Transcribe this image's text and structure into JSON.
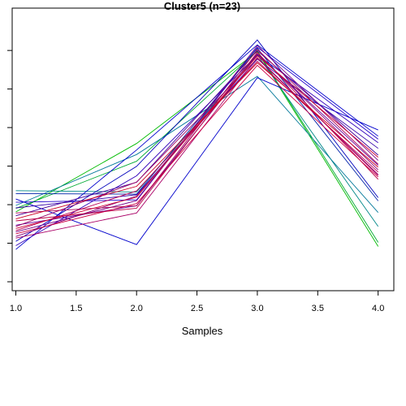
{
  "chart_data": {
    "type": "line",
    "title": "Cluster5 (n=23)",
    "xlabel": "Samples",
    "ylabel": "",
    "x": [
      1,
      2,
      3,
      4
    ],
    "xticks": [
      "1.0",
      "1.5",
      "2.0",
      "2.5",
      "3.0",
      "3.5",
      "4.0"
    ],
    "xlim": [
      0.97,
      4.13
    ],
    "ylim": [
      0.0,
      1.0
    ],
    "yticks": [
      0.0,
      0.143,
      0.286,
      0.429,
      0.572,
      0.715,
      0.858
    ],
    "grid": false,
    "legend": "none",
    "series": [
      {
        "color": "#00bb00",
        "values": [
          0.259,
          0.513,
          0.854,
          0.131
        ]
      },
      {
        "color": "#00aa33",
        "values": [
          0.272,
          0.447,
          0.857,
          0.146
        ]
      },
      {
        "color": "#008888",
        "values": [
          0.338,
          0.333,
          0.842,
          0.205
        ]
      },
      {
        "color": "#007799",
        "values": [
          0.283,
          0.472,
          0.762,
          0.257
        ]
      },
      {
        "color": "#0000cc",
        "values": [
          0.307,
          0.138,
          0.757,
          0.563
        ]
      },
      {
        "color": "#0000cc",
        "values": [
          0.12,
          0.489,
          0.879,
          0.54
        ]
      },
      {
        "color": "#0000bb",
        "values": [
          0.15,
          0.428,
          0.897,
          0.312
        ]
      },
      {
        "color": "#2200cc",
        "values": [
          0.295,
          0.304,
          0.87,
          0.529
        ]
      },
      {
        "color": "#0022aa",
        "values": [
          0.327,
          0.325,
          0.867,
          0.3
        ]
      },
      {
        "color": "#3300bb",
        "values": [
          0.134,
          0.393,
          0.842,
          0.516
        ]
      },
      {
        "color": "#3300aa",
        "values": [
          0.274,
          0.323,
          0.826,
          0.495
        ]
      },
      {
        "color": "#440099",
        "values": [
          0.245,
          0.369,
          0.857,
          0.47
        ]
      },
      {
        "color": "#660099",
        "values": [
          0.21,
          0.282,
          0.843,
          0.432
        ]
      },
      {
        "color": "#770088",
        "values": [
          0.185,
          0.301,
          0.876,
          0.45
        ]
      },
      {
        "color": "#880077",
        "values": [
          0.168,
          0.318,
          0.846,
          0.415
        ]
      },
      {
        "color": "#990066",
        "values": [
          0.205,
          0.37,
          0.828,
          0.398
        ]
      },
      {
        "color": "#aa0066",
        "values": [
          0.162,
          0.255,
          0.832,
          0.394
        ]
      },
      {
        "color": "#aa0055",
        "values": [
          0.255,
          0.282,
          0.862,
          0.436
        ]
      },
      {
        "color": "#bb0055",
        "values": [
          0.19,
          0.337,
          0.818,
          0.407
        ]
      },
      {
        "color": "#bb0044",
        "values": [
          0.226,
          0.273,
          0.851,
          0.38
        ]
      },
      {
        "color": "#cc0044",
        "values": [
          0.178,
          0.29,
          0.803,
          0.389
        ]
      },
      {
        "color": "#cc0033",
        "values": [
          0.198,
          0.314,
          0.838,
          0.462
        ]
      },
      {
        "color": "#cc0022",
        "values": [
          0.233,
          0.354,
          0.812,
          0.425
        ]
      }
    ]
  }
}
